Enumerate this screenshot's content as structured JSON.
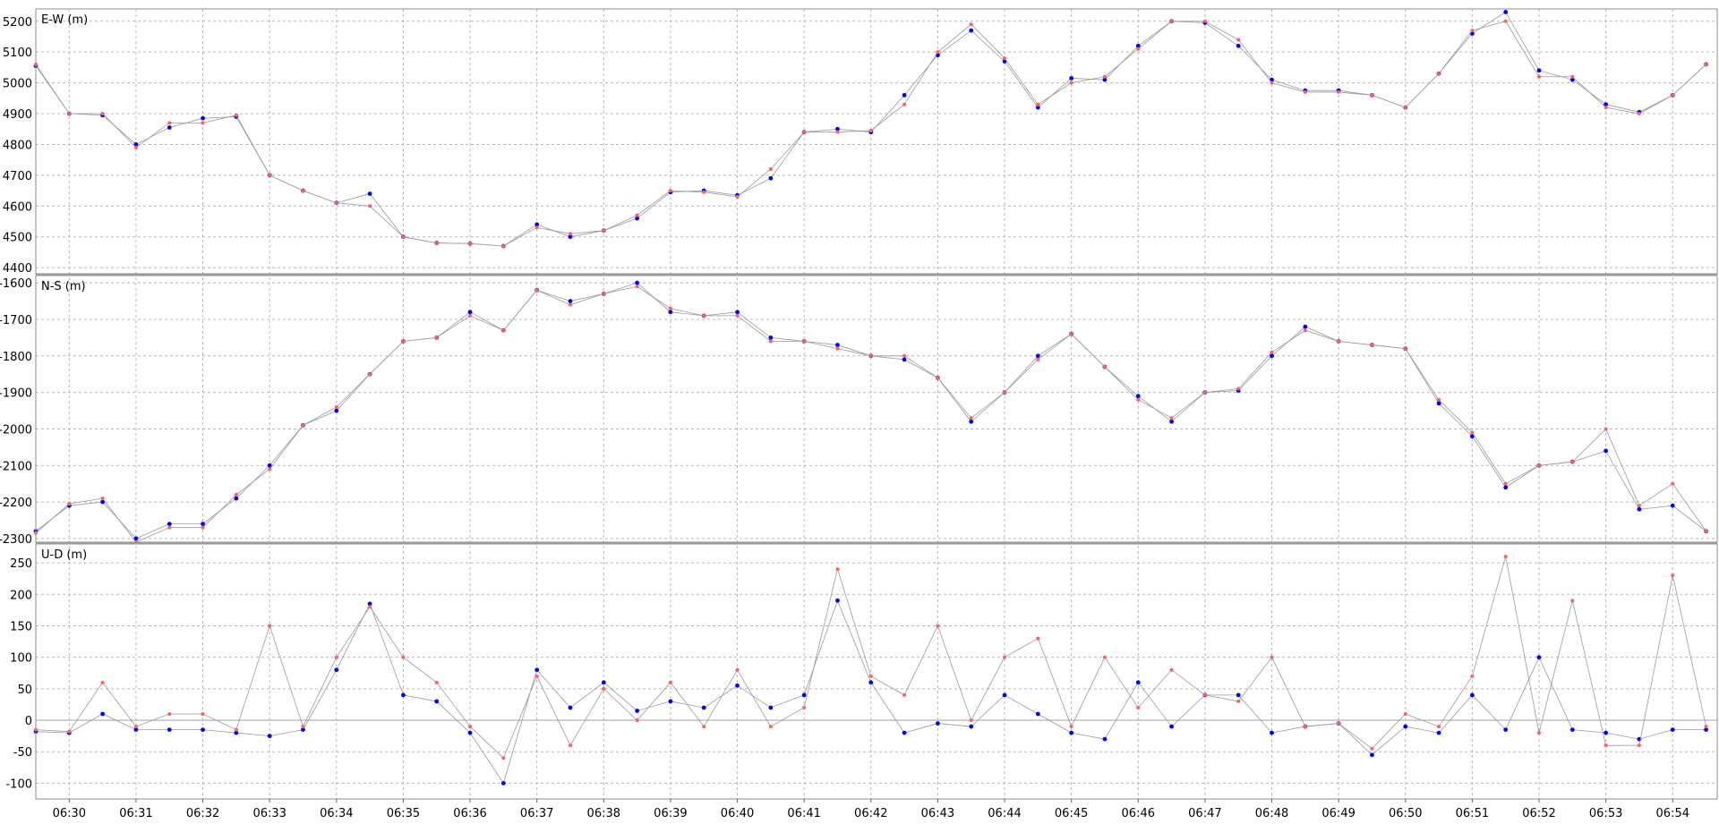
{
  "chart_data": [
    {
      "type": "scatter",
      "title": "E-W (m)",
      "ylim": [
        4380,
        5240
      ],
      "yticks": [
        5200,
        5100,
        5000,
        4900,
        4800,
        4700,
        4600,
        4500,
        4400
      ],
      "grid": true,
      "x": [
        "06:29:30",
        "06:30:00",
        "06:30:30",
        "06:31:00",
        "06:31:30",
        "06:32:00",
        "06:32:30",
        "06:33:00",
        "06:33:30",
        "06:34:00",
        "06:34:30",
        "06:35:00",
        "06:35:30",
        "06:36:00",
        "06:36:30",
        "06:37:00",
        "06:37:30",
        "06:38:00",
        "06:38:30",
        "06:39:00",
        "06:39:30",
        "06:40:00",
        "06:40:30",
        "06:41:00",
        "06:41:30",
        "06:42:00",
        "06:42:30",
        "06:43:00",
        "06:43:30",
        "06:44:00",
        "06:44:30",
        "06:45:00",
        "06:45:30",
        "06:46:00",
        "06:46:30",
        "06:47:00",
        "06:47:30",
        "06:48:00",
        "06:48:30",
        "06:49:00",
        "06:49:30",
        "06:50:00",
        "06:50:30",
        "06:51:00",
        "06:51:30",
        "06:52:00",
        "06:52:30",
        "06:53:00",
        "06:53:30",
        "06:54:00",
        "06:54:30"
      ],
      "series": [
        {
          "color": "#0000ff",
          "values": [
            5055,
            4900,
            4895,
            4800,
            4855,
            4885,
            4890,
            4700,
            4650,
            4610,
            4640,
            4500,
            4480,
            4478,
            4470,
            4540,
            4500,
            4520,
            4560,
            4645,
            4650,
            4635,
            4690,
            4840,
            4850,
            4840,
            4960,
            5090,
            5170,
            5070,
            4920,
            5015,
            5010,
            5120,
            5200,
            5195,
            5120,
            5010,
            4975,
            4975,
            4960,
            4920,
            5030,
            5160,
            5230,
            5040,
            5010,
            4930,
            4905,
            4960,
            5060
          ]
        },
        {
          "color": "#ff6060",
          "values": [
            5060,
            4900,
            4900,
            4790,
            4870,
            4870,
            4895,
            4700,
            4650,
            4610,
            4600,
            4500,
            4480,
            4478,
            4470,
            4530,
            4510,
            4520,
            4570,
            4650,
            4645,
            4630,
            4720,
            4840,
            4840,
            4845,
            4930,
            5100,
            5190,
            5080,
            4930,
            5000,
            5020,
            5110,
            5200,
            5200,
            5140,
            5000,
            4970,
            4970,
            4960,
            4920,
            5030,
            5170,
            5200,
            5020,
            5020,
            4920,
            4900,
            4960,
            5060
          ]
        }
      ]
    },
    {
      "type": "scatter",
      "title": "N-S (m)",
      "ylim": [
        -2310,
        -1580
      ],
      "yticks": [
        -1600,
        -1700,
        -1800,
        -1900,
        -2000,
        -2100,
        -2200,
        -2300
      ],
      "grid": true,
      "x": [
        "06:29:30",
        "06:30:00",
        "06:30:30",
        "06:31:00",
        "06:31:30",
        "06:32:00",
        "06:32:30",
        "06:33:00",
        "06:33:30",
        "06:34:00",
        "06:34:30",
        "06:35:00",
        "06:35:30",
        "06:36:00",
        "06:36:30",
        "06:37:00",
        "06:37:30",
        "06:38:00",
        "06:38:30",
        "06:39:00",
        "06:39:30",
        "06:40:00",
        "06:40:30",
        "06:41:00",
        "06:41:30",
        "06:42:00",
        "06:42:30",
        "06:43:00",
        "06:43:30",
        "06:44:00",
        "06:44:30",
        "06:45:00",
        "06:45:30",
        "06:46:00",
        "06:46:30",
        "06:47:00",
        "06:47:30",
        "06:48:00",
        "06:48:30",
        "06:49:00",
        "06:49:30",
        "06:50:00",
        "06:50:30",
        "06:51:00",
        "06:51:30",
        "06:52:00",
        "06:52:30",
        "06:53:00",
        "06:53:30",
        "06:54:00",
        "06:54:30"
      ],
      "series": [
        {
          "color": "#0000ff",
          "values": [
            -2280,
            -2210,
            -2200,
            -2300,
            -2260,
            -2260,
            -2190,
            -2100,
            -1990,
            -1950,
            -1850,
            -1760,
            -1750,
            -1680,
            -1730,
            -1620,
            -1650,
            -1630,
            -1600,
            -1680,
            -1690,
            -1680,
            -1750,
            -1760,
            -1770,
            -1800,
            -1810,
            -1860,
            -1980,
            -1900,
            -1800,
            -1740,
            -1830,
            -1910,
            -1980,
            -1900,
            -1895,
            -1800,
            -1720,
            -1760,
            -1770,
            -1780,
            -1930,
            -2020,
            -2160,
            -2100,
            -2090,
            -2060,
            -2220,
            -2210,
            -2280
          ]
        },
        {
          "color": "#ff6060",
          "values": [
            -2285,
            -2205,
            -2190,
            -2310,
            -2270,
            -2270,
            -2180,
            -2110,
            -1990,
            -1940,
            -1850,
            -1760,
            -1750,
            -1690,
            -1730,
            -1620,
            -1660,
            -1630,
            -1610,
            -1670,
            -1690,
            -1690,
            -1760,
            -1760,
            -1780,
            -1800,
            -1800,
            -1860,
            -1970,
            -1900,
            -1810,
            -1740,
            -1830,
            -1920,
            -1970,
            -1900,
            -1890,
            -1790,
            -1730,
            -1760,
            -1770,
            -1780,
            -1920,
            -2010,
            -2150,
            -2100,
            -2090,
            -2000,
            -2210,
            -2150,
            -2280
          ]
        }
      ]
    },
    {
      "type": "scatter",
      "title": "U-D (m)",
      "ylim": [
        -125,
        280
      ],
      "yticks": [
        250,
        200,
        150,
        100,
        50,
        0,
        -50,
        -100
      ],
      "grid": true,
      "xlabels": [
        "06:30",
        "06:31",
        "06:32",
        "06:33",
        "06:34",
        "06:35",
        "06:36",
        "06:37",
        "06:38",
        "06:39",
        "06:40",
        "06:41",
        "06:42",
        "06:43",
        "06:44",
        "06:45",
        "06:46",
        "06:47",
        "06:48",
        "06:49",
        "06:50",
        "06:51",
        "06:52",
        "06:53",
        "06:54"
      ],
      "x": [
        "06:29:30",
        "06:30:00",
        "06:30:30",
        "06:31:00",
        "06:31:30",
        "06:32:00",
        "06:32:30",
        "06:33:00",
        "06:33:30",
        "06:34:00",
        "06:34:30",
        "06:35:00",
        "06:35:30",
        "06:36:00",
        "06:36:30",
        "06:37:00",
        "06:37:30",
        "06:38:00",
        "06:38:30",
        "06:39:00",
        "06:39:30",
        "06:40:00",
        "06:40:30",
        "06:41:00",
        "06:41:30",
        "06:42:00",
        "06:42:30",
        "06:43:00",
        "06:43:30",
        "06:44:00",
        "06:44:30",
        "06:45:00",
        "06:45:30",
        "06:46:00",
        "06:46:30",
        "06:47:00",
        "06:47:30",
        "06:48:00",
        "06:48:30",
        "06:49:00",
        "06:49:30",
        "06:50:00",
        "06:50:30",
        "06:51:00",
        "06:51:30",
        "06:52:00",
        "06:52:30",
        "06:53:00",
        "06:53:30",
        "06:54:00",
        "06:54:30"
      ],
      "series": [
        {
          "color": "#0000ff",
          "values": [
            -18,
            -20,
            10,
            -15,
            -15,
            -15,
            -20,
            -25,
            -15,
            80,
            185,
            40,
            30,
            -20,
            -100,
            80,
            20,
            60,
            15,
            30,
            20,
            55,
            20,
            40,
            190,
            60,
            -20,
            -5,
            -10,
            40,
            10,
            -20,
            -30,
            60,
            -10,
            40,
            40,
            -20,
            -10,
            -5,
            -55,
            -10,
            -20,
            40,
            -15,
            100,
            -15,
            -20,
            -30,
            -15,
            -15
          ]
        },
        {
          "color": "#ff6060",
          "values": [
            -15,
            -18,
            60,
            -10,
            10,
            10,
            -15,
            150,
            -10,
            100,
            180,
            100,
            60,
            -10,
            -60,
            70,
            -40,
            50,
            0,
            60,
            -10,
            80,
            -10,
            20,
            240,
            70,
            40,
            150,
            0,
            100,
            130,
            -10,
            100,
            20,
            80,
            40,
            30,
            100,
            -10,
            -5,
            -45,
            10,
            -10,
            70,
            260,
            -20,
            190,
            -40,
            -40,
            230,
            -10
          ]
        }
      ]
    }
  ]
}
